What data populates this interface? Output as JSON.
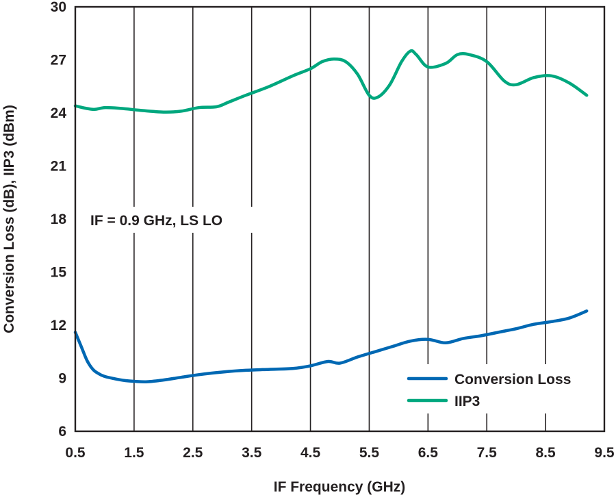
{
  "chart_data": {
    "type": "line",
    "xlabel": "IF Frequency (GHz)",
    "ylabel": "Conversion Loss (dB), IIP3 (dBm)",
    "xlim": [
      0.5,
      9.5
    ],
    "ylim": [
      6,
      30
    ],
    "x_ticks": [
      "0.5",
      "1.5",
      "2.5",
      "3.5",
      "4.5",
      "5.5",
      "6.5",
      "7.5",
      "8.5",
      "9.5"
    ],
    "y_ticks": [
      "6",
      "9",
      "12",
      "15",
      "18",
      "21",
      "24",
      "27",
      "30"
    ],
    "grid": "vertical",
    "legend_position": "bottom-right",
    "annotation": "IF = 0.9 GHz, LS LO",
    "colors": {
      "Conversion Loss": "#0068b3",
      "IIP3": "#00a77e",
      "grid": "#231f20"
    },
    "series": [
      {
        "name": "Conversion Loss",
        "x": [
          0.5,
          0.6,
          0.7,
          0.8,
          0.9,
          1.0,
          1.2,
          1.4,
          1.7,
          2.0,
          2.3,
          2.6,
          3.0,
          3.4,
          3.8,
          4.2,
          4.5,
          4.8,
          5.0,
          5.3,
          5.6,
          5.9,
          6.2,
          6.5,
          6.8,
          7.1,
          7.4,
          7.7,
          8.0,
          8.3,
          8.6,
          8.9,
          9.2
        ],
        "y": [
          11.6,
          10.8,
          10.0,
          9.5,
          9.25,
          9.1,
          8.95,
          8.85,
          8.8,
          8.9,
          9.05,
          9.2,
          9.35,
          9.45,
          9.5,
          9.55,
          9.7,
          9.95,
          9.85,
          10.2,
          10.5,
          10.8,
          11.1,
          11.2,
          11.0,
          11.25,
          11.4,
          11.6,
          11.8,
          12.05,
          12.2,
          12.4,
          12.8
        ]
      },
      {
        "name": "IIP3",
        "x": [
          0.5,
          0.8,
          1.0,
          1.3,
          1.6,
          2.0,
          2.3,
          2.6,
          2.9,
          3.1,
          3.4,
          3.8,
          4.2,
          4.5,
          4.7,
          4.9,
          5.1,
          5.3,
          5.5,
          5.65,
          5.85,
          6.05,
          6.2,
          6.3,
          6.5,
          6.8,
          7.0,
          7.2,
          7.5,
          7.8,
          8.0,
          8.3,
          8.6,
          8.9,
          9.2
        ],
        "y": [
          24.4,
          24.2,
          24.3,
          24.25,
          24.15,
          24.05,
          24.1,
          24.3,
          24.35,
          24.6,
          25.0,
          25.5,
          26.1,
          26.5,
          26.9,
          27.05,
          26.9,
          26.2,
          25.0,
          24.9,
          25.6,
          26.9,
          27.5,
          27.3,
          26.6,
          26.8,
          27.3,
          27.3,
          26.9,
          25.8,
          25.6,
          26.0,
          26.1,
          25.7,
          25.0
        ]
      }
    ]
  }
}
